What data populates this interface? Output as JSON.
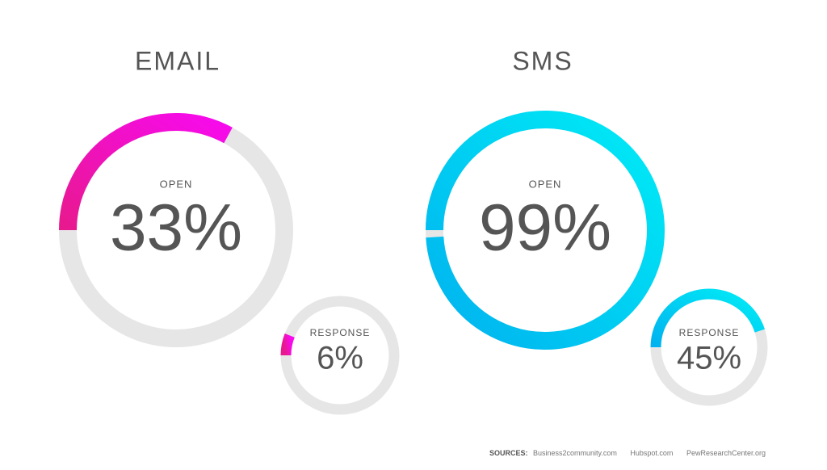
{
  "chart_data": [
    {
      "type": "donut",
      "title": "EMAIL",
      "categories": [
        "OPEN",
        "RESPONSE"
      ],
      "values": [
        33,
        6
      ],
      "value_labels": [
        "33%",
        "6%"
      ],
      "ylim": [
        0,
        100
      ],
      "gradient": [
        "#e8198e",
        "#f70aee"
      ],
      "track_color": "#e6e6e6"
    },
    {
      "type": "donut",
      "title": "SMS",
      "categories": [
        "OPEN",
        "RESPONSE"
      ],
      "values": [
        99,
        45
      ],
      "value_labels": [
        "99%",
        "45%"
      ],
      "ylim": [
        0,
        100
      ],
      "gradient": [
        "#00b2ef",
        "#00ecf6"
      ],
      "track_color": "#e6e6e6"
    }
  ],
  "footer": {
    "label": "SOURCES:",
    "items": [
      "Business2community.com",
      "Hubspot.com",
      "PewResearchCenter.org"
    ]
  }
}
